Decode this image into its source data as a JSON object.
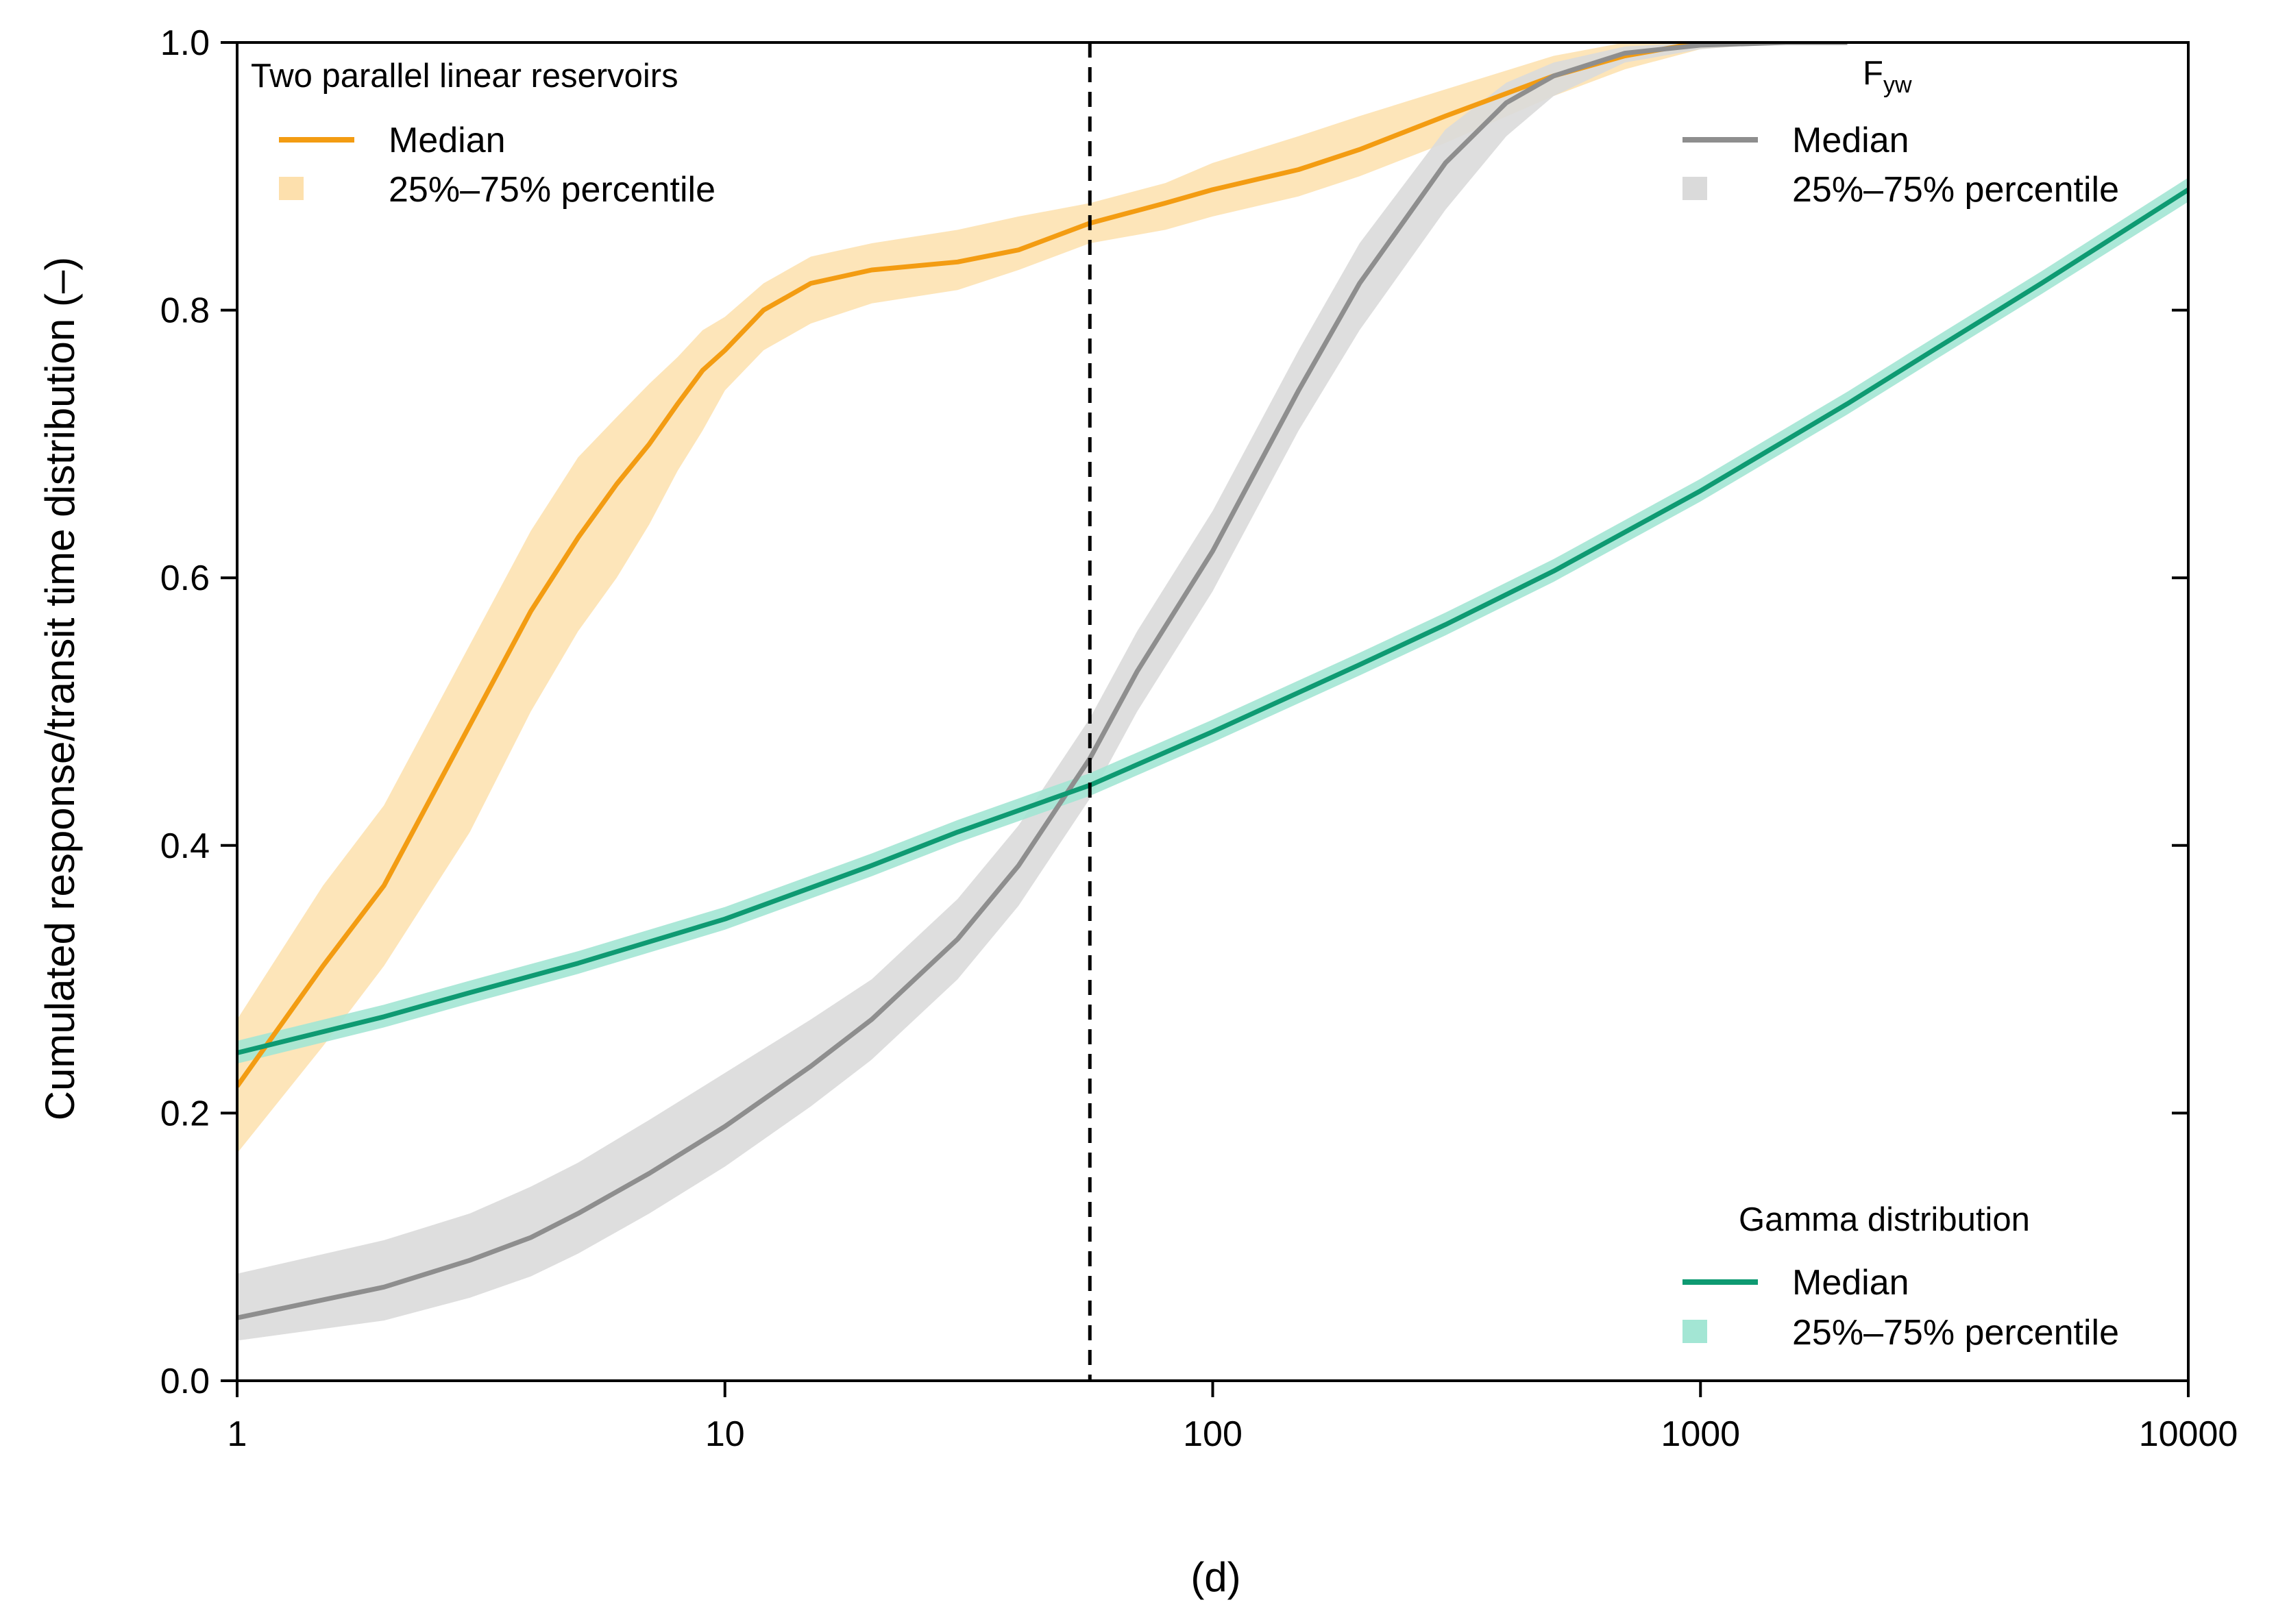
{
  "chart_data": {
    "type": "line",
    "title": "",
    "xlabel": "(d)",
    "ylabel": "Cumulated response/transit time distribution (–)",
    "xscale": "log",
    "xlim": [
      1,
      10000
    ],
    "ylim": [
      0,
      1
    ],
    "x_ticks": [
      1,
      10,
      100,
      1000,
      10000
    ],
    "x_tick_labels": [
      "1",
      "10",
      "100",
      "1000",
      "10000"
    ],
    "y_ticks": [
      0,
      0.2,
      0.4,
      0.6,
      0.8,
      1.0
    ],
    "y_tick_labels": [
      "0.0",
      "0.2",
      "0.4",
      "0.6",
      "0.8",
      "1.0"
    ],
    "grid": false,
    "vline": {
      "x": 56,
      "style": "dashed"
    },
    "legends": [
      {
        "title": "Two parallel linear reservoirs",
        "position": "top-left",
        "median_label": "Median",
        "band_label": "25%–75% percentile",
        "line_color": "#f39c12",
        "band_color": "#fde0ad"
      },
      {
        "title": "F",
        "title_sub": "yw",
        "position": "top-right",
        "median_label": "Median",
        "band_label": "25%–75% percentile",
        "line_color": "#8e8e8e",
        "band_color": "#dadada"
      },
      {
        "title": "Gamma distribution",
        "position": "bottom-right",
        "median_label": "Median",
        "band_label": "25%–75% percentile",
        "line_color": "#0e9a72",
        "band_color": "#a3e6d4"
      }
    ],
    "series": [
      {
        "name": "Two parallel linear reservoirs",
        "line_color": "#f39c12",
        "band_color": "#fde0ad",
        "x": [
          1,
          1.5,
          2,
          3,
          4,
          5,
          6,
          7,
          8,
          9,
          10,
          12,
          15,
          20,
          30,
          40,
          56,
          80,
          100,
          150,
          200,
          300,
          500,
          700,
          1000,
          1500,
          2000
        ],
        "median": [
          0.22,
          0.31,
          0.37,
          0.49,
          0.575,
          0.63,
          0.67,
          0.7,
          0.73,
          0.755,
          0.77,
          0.8,
          0.82,
          0.83,
          0.836,
          0.845,
          0.865,
          0.88,
          0.89,
          0.905,
          0.92,
          0.945,
          0.975,
          0.99,
          1.0,
          1.0,
          1.0
        ],
        "lower": [
          0.17,
          0.25,
          0.31,
          0.41,
          0.5,
          0.56,
          0.6,
          0.64,
          0.68,
          0.71,
          0.74,
          0.77,
          0.79,
          0.805,
          0.815,
          0.83,
          0.85,
          0.86,
          0.87,
          0.885,
          0.9,
          0.925,
          0.96,
          0.98,
          0.995,
          1.0,
          1.0
        ],
        "upper": [
          0.27,
          0.37,
          0.43,
          0.55,
          0.635,
          0.69,
          0.72,
          0.745,
          0.765,
          0.785,
          0.795,
          0.82,
          0.84,
          0.85,
          0.86,
          0.87,
          0.88,
          0.895,
          0.91,
          0.93,
          0.945,
          0.965,
          0.99,
          1.0,
          1.0,
          1.0,
          1.0
        ]
      },
      {
        "name": "Fyw",
        "line_color": "#8e8e8e",
        "band_color": "#dadada",
        "x": [
          1,
          2,
          3,
          4,
          5,
          7,
          10,
          15,
          20,
          30,
          40,
          56,
          70,
          100,
          150,
          200,
          300,
          400,
          500,
          700,
          1000,
          1500,
          2000
        ],
        "median": [
          0.047,
          0.07,
          0.09,
          0.107,
          0.125,
          0.155,
          0.19,
          0.235,
          0.27,
          0.33,
          0.385,
          0.465,
          0.53,
          0.62,
          0.74,
          0.82,
          0.91,
          0.955,
          0.975,
          0.992,
          0.998,
          1.0,
          1.0
        ],
        "lower": [
          0.03,
          0.045,
          0.062,
          0.078,
          0.095,
          0.125,
          0.16,
          0.205,
          0.24,
          0.3,
          0.355,
          0.435,
          0.5,
          0.59,
          0.71,
          0.785,
          0.875,
          0.93,
          0.96,
          0.985,
          0.995,
          1.0,
          1.0
        ],
        "upper": [
          0.08,
          0.105,
          0.125,
          0.145,
          0.163,
          0.195,
          0.23,
          0.27,
          0.3,
          0.36,
          0.415,
          0.495,
          0.56,
          0.65,
          0.77,
          0.85,
          0.935,
          0.97,
          0.985,
          0.997,
          1.0,
          1.0,
          1.0
        ]
      },
      {
        "name": "Gamma distribution",
        "line_color": "#0e9a72",
        "band_color": "#a3e6d4",
        "x": [
          1,
          2,
          3,
          5,
          10,
          20,
          30,
          56,
          100,
          200,
          300,
          500,
          1000,
          2000,
          3000,
          5000,
          10000
        ],
        "median": [
          0.245,
          0.272,
          0.29,
          0.312,
          0.345,
          0.385,
          0.41,
          0.445,
          0.485,
          0.535,
          0.565,
          0.605,
          0.665,
          0.73,
          0.77,
          0.82,
          0.89
        ],
        "lower": [
          0.237,
          0.264,
          0.282,
          0.304,
          0.337,
          0.377,
          0.402,
          0.437,
          0.477,
          0.527,
          0.557,
          0.597,
          0.657,
          0.722,
          0.762,
          0.812,
          0.881
        ],
        "upper": [
          0.254,
          0.281,
          0.299,
          0.321,
          0.354,
          0.394,
          0.419,
          0.454,
          0.494,
          0.544,
          0.574,
          0.614,
          0.674,
          0.739,
          0.779,
          0.829,
          0.899
        ]
      }
    ]
  }
}
